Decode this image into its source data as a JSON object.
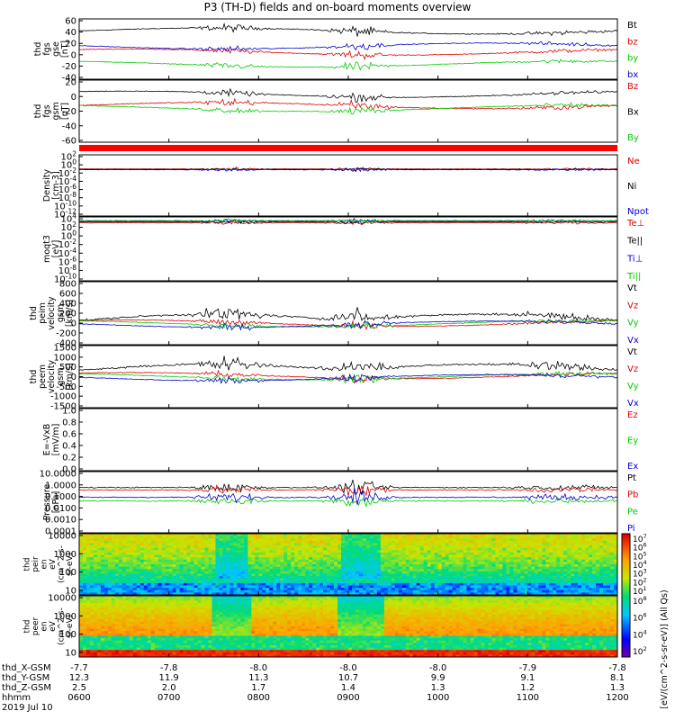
{
  "title": "P3 (TH-D) fields and on-board moments overview",
  "chart_data": [
    {
      "id": "fgs_gse",
      "type": "line",
      "ylabel": [
        "thd",
        "fgs",
        "gse",
        "[nT]"
      ],
      "ylim": [
        -40,
        60
      ],
      "ticks": [
        "60",
        "40",
        "20",
        "0",
        "-20",
        "-40"
      ],
      "series": [
        {
          "name": "Bt",
          "color": "#000000",
          "level": 40
        },
        {
          "name": "bz",
          "color": "#dd0000",
          "level": 5
        },
        {
          "name": "by",
          "color": "#00cc00",
          "level": -15
        },
        {
          "name": "bx",
          "color": "#0000cc",
          "level": 15
        }
      ]
    },
    {
      "id": "fgs_gsm",
      "type": "line",
      "ylabel": [
        "thd",
        "fgs",
        "gsm",
        "[nT]"
      ],
      "ylim": [
        -70,
        40
      ],
      "ticks": [
        "20",
        "0",
        "-20",
        "-40",
        "-60"
      ],
      "series": [
        {
          "name": "Bz",
          "color": "#dd0000",
          "level": -5
        },
        {
          "name": "Bx",
          "color": "#000000",
          "level": 15
        },
        {
          "name": "By",
          "color": "#00cc00",
          "level": -10
        }
      ]
    },
    {
      "id": "density",
      "type": "line",
      "ylabel": [
        "Density",
        "[cm-3]"
      ],
      "log": true,
      "ylim": [
        -12,
        4
      ],
      "ticks": [
        "10^2",
        "10^0",
        "10^-2",
        "10^-4",
        "10^-6",
        "10^-8",
        "10^-10",
        "10^-12"
      ],
      "series": [
        {
          "name": "Ne",
          "color": "#dd0000",
          "level": 0.3
        },
        {
          "name": "Ni",
          "color": "#000000",
          "level": 0.2
        },
        {
          "name": "Npot",
          "color": "#0000cc",
          "level": 0.1
        }
      ]
    },
    {
      "id": "temperature",
      "type": "line",
      "ylabel": [
        "moqt3",
        "[eV]"
      ],
      "log": true,
      "ylim": [
        -10,
        4
      ],
      "ticks": [
        "10^4",
        "10^2",
        "10^0",
        "10^-2",
        "10^-4",
        "10^-6",
        "10^-8",
        "10^-10"
      ],
      "series": [
        {
          "name": "Te⊥",
          "color": "#dd0000",
          "level": 2.7
        },
        {
          "name": "Te||",
          "color": "#000000",
          "level": 2.9
        },
        {
          "name": "Ti⊥",
          "color": "#0000cc",
          "level": 3.1
        },
        {
          "name": "Ti||",
          "color": "#00cc00",
          "level": 3.2
        }
      ]
    },
    {
      "id": "peim_velocity",
      "type": "line",
      "ylabel": [
        "thd",
        "peim",
        "velocity",
        "gsm",
        "[km/s]"
      ],
      "ylim": [
        -400,
        800
      ],
      "ticks": [
        "800",
        "600",
        "400",
        "200",
        "0",
        "-200",
        "-400"
      ],
      "series": [
        {
          "name": "Vt",
          "color": "#000000",
          "level": 60
        },
        {
          "name": "Vz",
          "color": "#dd0000",
          "level": 10
        },
        {
          "name": "Vy",
          "color": "#00cc00",
          "level": 0
        },
        {
          "name": "Vx",
          "color": "#0000cc",
          "level": -10
        }
      ]
    },
    {
      "id": "peem_velocity",
      "type": "line",
      "ylabel": [
        "thd",
        "peem",
        "velocity",
        "gsm",
        "[km/s]"
      ],
      "ylim": [
        -1500,
        1500
      ],
      "ticks": [
        "1500",
        "1000",
        "500",
        "0",
        "-500",
        "-1000",
        "-1500"
      ],
      "series": [
        {
          "name": "Vt",
          "color": "#000000",
          "level": 300
        },
        {
          "name": "Vz",
          "color": "#dd0000",
          "level": 50
        },
        {
          "name": "Vy",
          "color": "#00cc00",
          "level": 0
        },
        {
          "name": "Vx",
          "color": "#0000cc",
          "level": -50
        }
      ]
    },
    {
      "id": "efield",
      "type": "line",
      "ylabel": [
        "E=-VxB",
        "[mV/m]"
      ],
      "ylim": [
        0,
        1
      ],
      "ticks": [
        "1.0",
        "0.8",
        "0.6",
        "0.4",
        "0.2",
        "0.0"
      ],
      "series": [
        {
          "name": "Ez",
          "color": "#dd0000"
        },
        {
          "name": "Ey",
          "color": "#00cc00"
        },
        {
          "name": "Ex",
          "color": "#0000cc"
        }
      ]
    },
    {
      "id": "pressure",
      "type": "line",
      "ylabel": [
        "Pressure",
        "[nPa]"
      ],
      "log": true,
      "ylim": [
        -4,
        1
      ],
      "ticks": [
        "10.0000",
        "1.0000",
        "0.1000",
        "0.0100",
        "0.0010",
        "0.0001"
      ],
      "series": [
        {
          "name": "Pt",
          "color": "#000000",
          "level": -0.3
        },
        {
          "name": "Pb",
          "color": "#dd0000",
          "level": -0.5
        },
        {
          "name": "Pe",
          "color": "#00cc00",
          "level": -1.4
        },
        {
          "name": "Pi",
          "color": "#0000cc",
          "level": -1.1
        }
      ]
    },
    {
      "id": "peir_spec",
      "type": "heatmap",
      "ylabel": [
        "thd",
        "peir",
        "en",
        "eV",
        "(cm^2-s-",
        "sr-eV)"
      ],
      "log": true,
      "ylim": [
        0.75,
        4.1
      ],
      "ticks": [
        "10000",
        "1000",
        "100",
        "10"
      ]
    },
    {
      "id": "peer_spec",
      "type": "heatmap",
      "ylabel": [
        "thd",
        "peer",
        "en",
        "eV",
        "(cm^2-s-",
        "sr-eV)"
      ],
      "log": true,
      "ylim": [
        0.75,
        4.1
      ],
      "ticks": [
        "10000",
        "1000",
        "100",
        "10"
      ]
    }
  ],
  "colorbar": {
    "label": "[eV/(cm^2-s-sr-eV)] (All Qs)",
    "ion_ticks": [
      "10^7",
      "10^6",
      "10^5",
      "10^4",
      "10^3",
      "10^2",
      "10^1"
    ],
    "electron_ticks": [
      "10^8",
      "10^6",
      "10^4",
      "10^2"
    ]
  },
  "orbit": {
    "rows": [
      {
        "label": "thd_X-GSM",
        "values": [
          "-7.7",
          "-7.8",
          "-8.0",
          "-8.0",
          "-8.0",
          "-7.9",
          "-7.8"
        ]
      },
      {
        "label": "thd_Y-GSM",
        "values": [
          "12.3",
          "11.9",
          "11.3",
          "10.7",
          "9.9",
          "9.1",
          "8.1"
        ]
      },
      {
        "label": "thd_Z-GSM",
        "values": [
          "2.5",
          "2.0",
          "1.7",
          "1.4",
          "1.3",
          "1.2",
          "1.3"
        ]
      },
      {
        "label": "hhmm",
        "values": [
          "0600",
          "0700",
          "0800",
          "0900",
          "1000",
          "1100",
          "1200"
        ]
      }
    ],
    "date": "2019 Jul 10"
  },
  "colors": {
    "frame": "#000000",
    "flag_red": "#ff0000"
  }
}
